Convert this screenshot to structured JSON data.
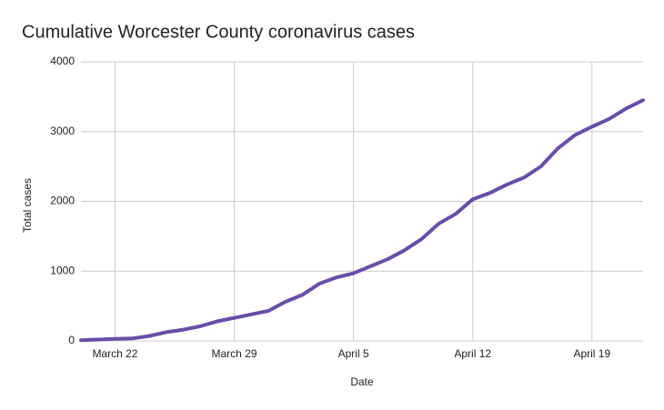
{
  "chart_data": {
    "type": "line",
    "title": "Cumulative Worcester County coronavirus cases",
    "x_label": "Date",
    "y_label": "Total cases",
    "categories": [
      null,
      null,
      "March 22",
      null,
      null,
      null,
      null,
      null,
      null,
      "March 29",
      null,
      null,
      null,
      null,
      null,
      null,
      "April 5",
      null,
      null,
      null,
      null,
      null,
      null,
      "April 12",
      null,
      null,
      null,
      null,
      null,
      null,
      "April 19",
      null,
      null,
      null
    ],
    "values": [
      10,
      20,
      30,
      35,
      70,
      125,
      160,
      210,
      280,
      330,
      380,
      430,
      560,
      660,
      820,
      910,
      970,
      1070,
      1170,
      1300,
      1460,
      1680,
      1820,
      2030,
      2120,
      2240,
      2340,
      2500,
      2760,
      2950,
      3070,
      3180,
      3330,
      3450
    ],
    "color": "#674ea7",
    "ylim": [
      0,
      4000
    ],
    "yticks": [
      0,
      1000,
      2000,
      3000,
      4000
    ],
    "grid": true
  }
}
